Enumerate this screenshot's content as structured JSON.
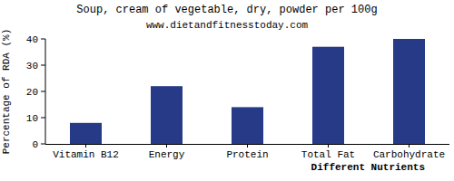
{
  "chart_data": {
    "type": "bar",
    "title": "Soup, cream of vegetable, dry, powder per 100g",
    "subtitle": "www.dietandfitnesstoday.com",
    "x_label": "Different Nutrients",
    "y_label": "Percentage of RDA (%)",
    "categories": [
      "Vitamin B12",
      "Energy",
      "Protein",
      "Total Fat",
      "Carbohydrate"
    ],
    "values": [
      8,
      22,
      14,
      37,
      40
    ],
    "color": "#263a87",
    "ylim": [
      0,
      40
    ],
    "yticks": [
      0,
      10,
      20,
      30,
      40
    ],
    "grid": false
  }
}
